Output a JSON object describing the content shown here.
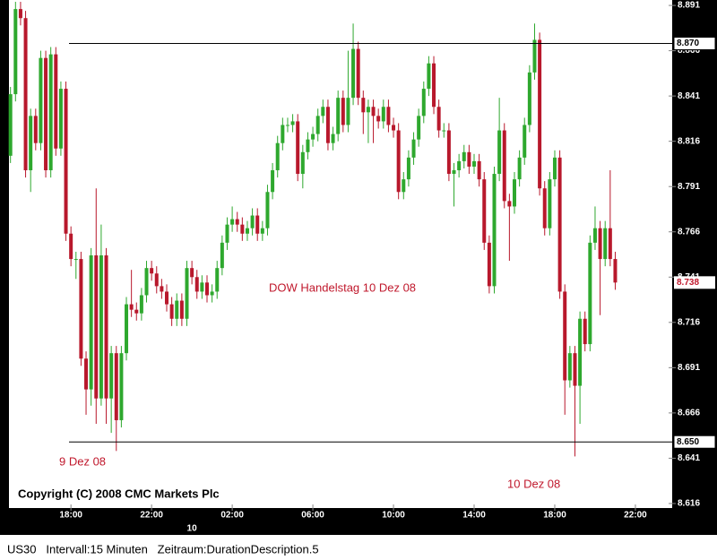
{
  "chart_data": {
    "type": "candlestick",
    "annotations": [
      "DOW Handelstag 10 Dez  08",
      "9 Dez 08",
      "10 Dez 08",
      "Copyright (C) 2008 CMC Markets Plc"
    ],
    "status": "US30   Intervall:15 Minuten   Zeitraum:DurationDescription.5",
    "up_color": "#2ea82e",
    "down_color": "#b8182c",
    "xlim": [
      -0.3,
      131.3
    ],
    "xticks": [
      {
        "value": 12,
        "label": "18:00"
      },
      {
        "value": 28,
        "label": "22:00"
      },
      {
        "value": 44,
        "label": "02:00"
      },
      {
        "value": 60,
        "label": "06:00"
      },
      {
        "value": 76,
        "label": "10:00"
      },
      {
        "value": 92,
        "label": "14:00"
      },
      {
        "value": 108,
        "label": "18:00"
      },
      {
        "value": 124,
        "label": "22:00"
      }
    ],
    "day_ticks": [
      {
        "value": 36,
        "label": "10"
      }
    ],
    "ylim": [
      8.6135,
      8.894
    ],
    "yticks": [
      8.891,
      8.866,
      8.841,
      8.816,
      8.791,
      8.766,
      8.741,
      8.716,
      8.691,
      8.666,
      8.641,
      8.616
    ],
    "hlines": [
      {
        "value": 8.87,
        "label": "8.870"
      },
      {
        "value": 8.65,
        "label": "8.650"
      }
    ],
    "last_price": 8.738,
    "open": [
      8.808,
      8.842,
      8.889,
      8.884,
      8.8,
      8.83,
      8.815,
      8.862,
      8.8,
      8.864,
      8.812,
      8.845,
      8.765,
      8.751,
      8.751,
      8.696,
      8.679,
      8.753,
      8.674,
      8.753,
      8.674,
      8.699,
      8.662,
      8.699,
      8.726,
      8.723,
      8.721,
      8.731,
      8.746,
      8.743,
      8.736,
      8.733,
      8.726,
      8.718,
      8.728,
      8.718,
      8.746,
      8.741,
      8.733,
      8.738,
      8.731,
      8.733,
      8.746,
      8.76,
      8.77,
      8.773,
      8.77,
      8.765,
      8.768,
      8.775,
      8.765,
      8.768,
      8.788,
      8.8,
      8.815,
      8.825,
      8.825,
      8.827,
      8.798,
      8.81,
      8.817,
      8.82,
      8.83,
      8.835,
      8.815,
      8.82,
      8.84,
      8.825,
      8.84,
      8.867,
      8.84,
      8.832,
      8.835,
      8.83,
      8.827,
      8.835,
      8.825,
      8.822,
      8.788,
      8.795,
      8.807,
      8.817,
      8.83,
      8.845,
      8.859,
      8.835,
      8.822,
      8.822,
      8.798,
      8.8,
      8.805,
      8.81,
      8.802,
      8.805,
      8.795,
      8.76,
      8.736,
      8.798,
      8.822,
      8.783,
      8.78,
      8.795,
      8.807,
      8.825,
      8.854,
      8.872,
      8.79,
      8.768,
      8.795,
      8.807,
      8.733,
      8.684,
      8.699,
      8.681,
      8.718,
      8.704,
      8.76,
      8.768,
      8.751,
      8.768,
      8.751
    ],
    "high": [
      8.846,
      8.893,
      8.893,
      8.888,
      8.834,
      8.834,
      8.866,
      8.866,
      8.868,
      8.868,
      8.849,
      8.849,
      8.769,
      8.755,
      8.755,
      8.7,
      8.757,
      8.79,
      8.77,
      8.757,
      8.703,
      8.703,
      8.703,
      8.73,
      8.745,
      8.727,
      8.735,
      8.75,
      8.75,
      8.747,
      8.74,
      8.737,
      8.73,
      8.732,
      8.732,
      8.75,
      8.75,
      8.745,
      8.742,
      8.742,
      8.737,
      8.75,
      8.764,
      8.774,
      8.78,
      8.777,
      8.774,
      8.772,
      8.779,
      8.779,
      8.772,
      8.792,
      8.804,
      8.819,
      8.829,
      8.829,
      8.831,
      8.831,
      8.814,
      8.821,
      8.824,
      8.834,
      8.839,
      8.839,
      8.824,
      8.844,
      8.844,
      8.866,
      8.881,
      8.871,
      8.844,
      8.839,
      8.839,
      8.834,
      8.839,
      8.839,
      8.829,
      8.826,
      8.799,
      8.811,
      8.821,
      8.834,
      8.849,
      8.863,
      8.863,
      8.839,
      8.826,
      8.826,
      8.804,
      8.809,
      8.814,
      8.814,
      8.809,
      8.809,
      8.799,
      8.764,
      8.802,
      8.84,
      8.826,
      8.787,
      8.799,
      8.811,
      8.829,
      8.858,
      8.881,
      8.876,
      8.794,
      8.799,
      8.811,
      8.811,
      8.737,
      8.703,
      8.703,
      8.722,
      8.722,
      8.764,
      8.78,
      8.772,
      8.772,
      8.8,
      8.755
    ],
    "low": [
      8.804,
      8.838,
      8.88,
      8.796,
      8.788,
      8.811,
      8.811,
      8.796,
      8.796,
      8.808,
      8.808,
      8.761,
      8.747,
      8.74,
      8.692,
      8.665,
      8.67,
      8.66,
      8.67,
      8.66,
      8.655,
      8.645,
      8.658,
      8.695,
      8.719,
      8.717,
      8.717,
      8.727,
      8.739,
      8.732,
      8.729,
      8.722,
      8.714,
      8.714,
      8.714,
      8.714,
      8.737,
      8.729,
      8.729,
      8.727,
      8.727,
      8.729,
      8.742,
      8.756,
      8.766,
      8.766,
      8.761,
      8.761,
      8.764,
      8.761,
      8.761,
      8.764,
      8.784,
      8.796,
      8.811,
      8.821,
      8.821,
      8.794,
      8.79,
      8.806,
      8.813,
      8.816,
      8.826,
      8.811,
      8.811,
      8.816,
      8.821,
      8.821,
      8.836,
      8.836,
      8.82,
      8.815,
      8.815,
      8.823,
      8.823,
      8.821,
      8.818,
      8.784,
      8.784,
      8.791,
      8.803,
      8.813,
      8.826,
      8.841,
      8.831,
      8.818,
      8.818,
      8.794,
      8.78,
      8.796,
      8.801,
      8.798,
      8.798,
      8.791,
      8.756,
      8.732,
      8.732,
      8.794,
      8.779,
      8.75,
      8.776,
      8.791,
      8.803,
      8.821,
      8.85,
      8.786,
      8.764,
      8.764,
      8.791,
      8.729,
      8.665,
      8.68,
      8.642,
      8.66,
      8.7,
      8.7,
      8.756,
      8.72,
      8.747,
      8.747,
      8.734
    ],
    "close": [
      8.842,
      8.889,
      8.884,
      8.8,
      8.83,
      8.815,
      8.862,
      8.8,
      8.864,
      8.812,
      8.845,
      8.765,
      8.751,
      8.751,
      8.696,
      8.679,
      8.753,
      8.674,
      8.753,
      8.674,
      8.699,
      8.662,
      8.699,
      8.726,
      8.723,
      8.721,
      8.731,
      8.746,
      8.743,
      8.736,
      8.733,
      8.726,
      8.718,
      8.728,
      8.718,
      8.746,
      8.741,
      8.733,
      8.738,
      8.731,
      8.733,
      8.746,
      8.76,
      8.77,
      8.773,
      8.77,
      8.765,
      8.768,
      8.775,
      8.765,
      8.768,
      8.788,
      8.8,
      8.815,
      8.825,
      8.825,
      8.827,
      8.798,
      8.81,
      8.817,
      8.82,
      8.83,
      8.835,
      8.815,
      8.82,
      8.84,
      8.825,
      8.84,
      8.867,
      8.84,
      8.832,
      8.835,
      8.83,
      8.827,
      8.835,
      8.825,
      8.822,
      8.788,
      8.795,
      8.807,
      8.817,
      8.83,
      8.845,
      8.859,
      8.835,
      8.822,
      8.822,
      8.798,
      8.8,
      8.805,
      8.81,
      8.802,
      8.805,
      8.795,
      8.76,
      8.736,
      8.798,
      8.822,
      8.783,
      8.78,
      8.795,
      8.807,
      8.825,
      8.854,
      8.872,
      8.79,
      8.768,
      8.795,
      8.807,
      8.733,
      8.684,
      8.699,
      8.681,
      8.718,
      8.704,
      8.76,
      8.768,
      8.751,
      8.768,
      8.751,
      8.738
    ]
  }
}
